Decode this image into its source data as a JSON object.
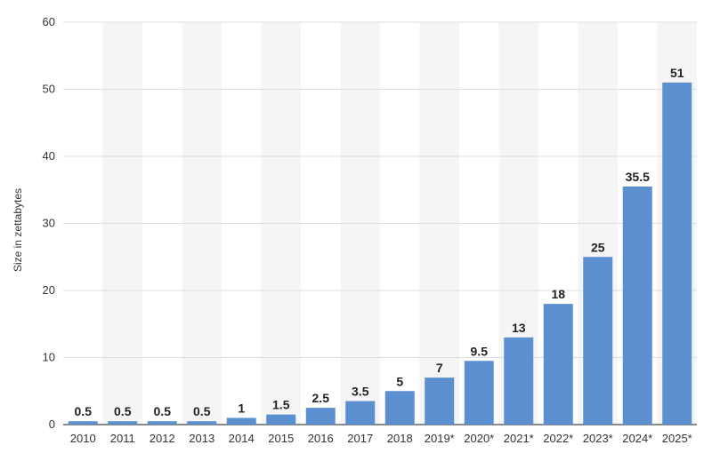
{
  "chart_data": {
    "type": "bar",
    "title": "",
    "xlabel": "",
    "ylabel": "Size in zettabytes",
    "ylim": [
      0,
      60
    ],
    "yticks": [
      0,
      10,
      20,
      30,
      40,
      50,
      60
    ],
    "grid": true,
    "bar_color": "#5b8fd0",
    "band_color": "#f5f5f5",
    "categories": [
      "2010",
      "2011",
      "2012",
      "2013",
      "2014",
      "2015",
      "2016",
      "2017",
      "2018",
      "2019*",
      "2020*",
      "2021*",
      "2022*",
      "2023*",
      "2024*",
      "2025*"
    ],
    "values": [
      0.5,
      0.5,
      0.5,
      0.5,
      1,
      1.5,
      2.5,
      3.5,
      5,
      7,
      9.5,
      13,
      18,
      25,
      35.5,
      51
    ],
    "data_labels": [
      "0.5",
      "0.5",
      "0.5",
      "0.5",
      "1",
      "1.5",
      "2.5",
      "3.5",
      "5",
      "7",
      "9.5",
      "13",
      "18",
      "25",
      "35.5",
      "51"
    ]
  }
}
